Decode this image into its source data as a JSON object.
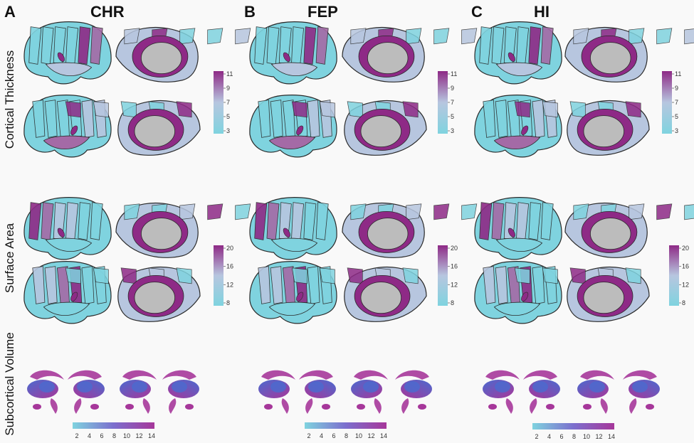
{
  "columns": [
    {
      "letter": "A",
      "title": "CHR"
    },
    {
      "letter": "B",
      "title": "FEP"
    },
    {
      "letter": "C",
      "title": "HI"
    }
  ],
  "rows": [
    {
      "label": "Cortical Thickness"
    },
    {
      "label": "Surface Area"
    },
    {
      "label": "Subcortical Volume"
    }
  ],
  "colors": {
    "low": "#7fd3df",
    "mid": "#b7c6df",
    "high": "#8e2a86",
    "medial_wall": "#bcbcbc",
    "outline": "#2a2a2a",
    "subcortical_low": "#4a6bd0",
    "subcortical_high": "#a6379a"
  },
  "legends": {
    "thickness": {
      "ticks": [
        "11",
        "9",
        "7",
        "5",
        "3"
      ]
    },
    "area": {
      "ticks": [
        "20",
        "16",
        "12",
        "8"
      ]
    },
    "volume": {
      "ticks": [
        "2",
        "4",
        "6",
        "8",
        "10",
        "12",
        "14"
      ]
    }
  }
}
